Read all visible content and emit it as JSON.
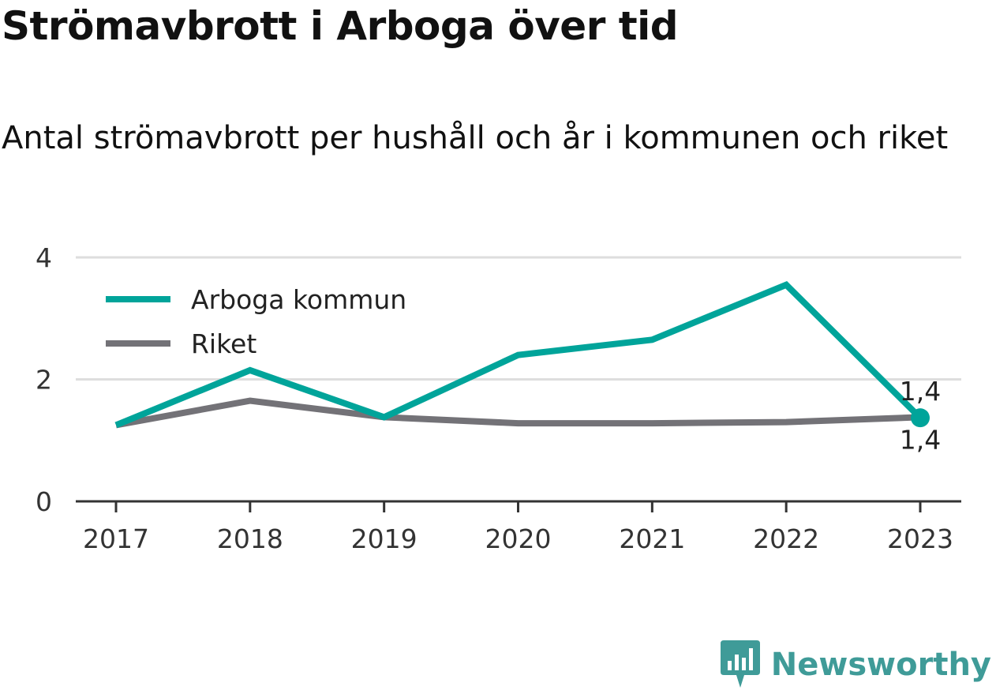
{
  "title": "Strömavbrott i Arboga över tid",
  "subtitle": "Antal strömavbrott per hushåll och år i kommunen och riket",
  "brand": {
    "name": "Newsworthy",
    "icon": "newsworthy-logo-icon",
    "color": "#3f9b98"
  },
  "chart_data": {
    "type": "line",
    "title": "Strömavbrott i Arboga över tid",
    "subtitle": "Antal strömavbrott per hushåll och år i kommunen och riket",
    "xlabel": "",
    "ylabel": "",
    "categories": [
      "2017",
      "2018",
      "2019",
      "2020",
      "2021",
      "2022",
      "2023"
    ],
    "ylim": [
      0,
      4
    ],
    "yticks": [
      0,
      2,
      4
    ],
    "ytick_labels": [
      "0",
      "2",
      "4"
    ],
    "grid": true,
    "legend_position": "top-left",
    "series": [
      {
        "name": "Arboga kommun",
        "color": "#00a49a",
        "values": [
          1.25,
          2.15,
          1.38,
          2.4,
          2.65,
          3.55,
          1.37
        ],
        "end_label": "1,4"
      },
      {
        "name": "Riket",
        "color": "#737277",
        "values": [
          1.25,
          1.65,
          1.38,
          1.28,
          1.28,
          1.3,
          1.38
        ],
        "end_label": "1,4"
      }
    ]
  }
}
